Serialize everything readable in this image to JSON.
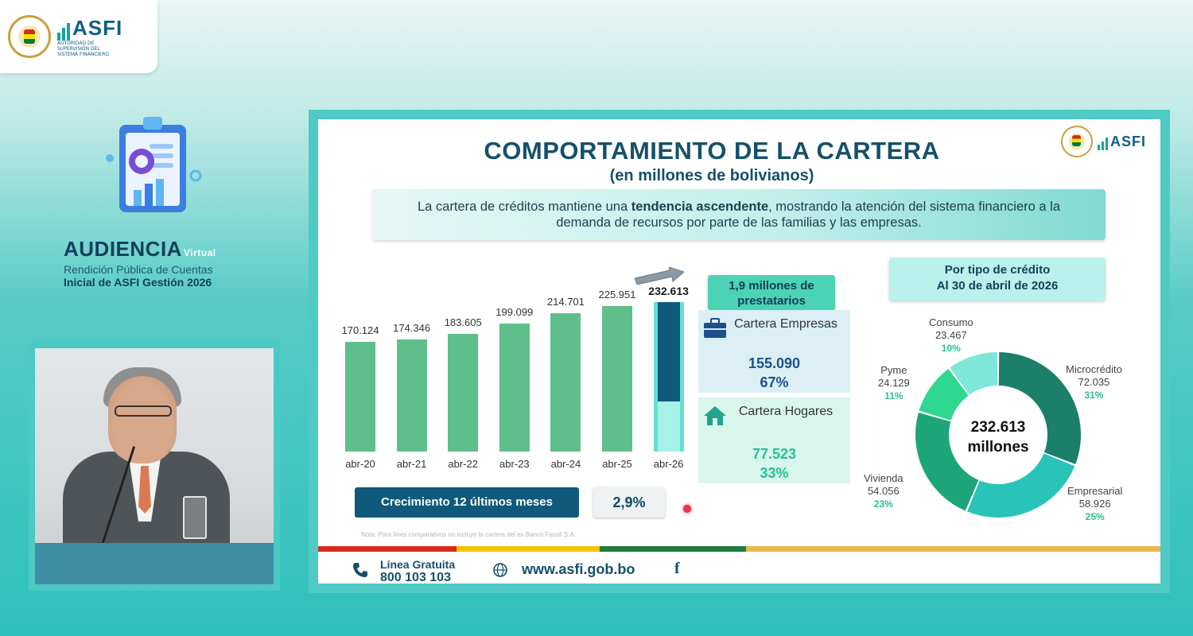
{
  "header": {
    "logo_text": "ASFI",
    "logo_subtitle": "AUTORIDAD DE SUPERVISIÓN DEL SISTEMA FINANCIERO"
  },
  "left_panel": {
    "icon": "clipboard-chart-icon",
    "audiencia": "AUDIENCIA",
    "virtual": "Virtual",
    "line1": "Rendición Pública de Cuentas",
    "line2": "Inicial de ASFI Gestión 2026"
  },
  "video": {
    "description_icon": "speaker-video-feed"
  },
  "slide": {
    "title": "COMPORTAMIENTO DE LA CARTERA",
    "subtitle": "(en millones de bolivianos)",
    "logo_text": "ASFI",
    "banner": {
      "part1": "La cartera de créditos mantiene una ",
      "bold": "tendencia ascendente",
      "part2": ", mostrando la atención del sistema financiero a la demanda de recursos por parte de las familias y las empresas."
    },
    "prestatarios": "1,9 millones de prestatarios",
    "empresas": {
      "label": "Cartera Empresas",
      "value": "155.090",
      "pct": "67%"
    },
    "hogares": {
      "label": "Cartera Hogares",
      "value": "77.523",
      "pct": "33%"
    },
    "growth_label": "Crecimiento 12 últimos meses",
    "growth_value": "2,9%",
    "note": "Nota: Para fines comparativos no incluye la cartera del ex Banco Fassil S.A.",
    "tipo_head_1": "Por tipo de crédito",
    "tipo_head_2": "Al 30 de abril de 2026",
    "donut_center_1": "232.613",
    "donut_center_2": "millones",
    "footer": {
      "linea": "Línea Gratuita",
      "phone": "800 103 103",
      "web": "www.asfi.gob.bo",
      "fb": "f"
    }
  },
  "colors": {
    "bar": "#5fbf8a",
    "bar_last_dark": "#0f5a7a",
    "bar_last_light": "#63e0d6",
    "title": "#15506b",
    "stripe": [
      "#d52b1e",
      "#f4c400",
      "#1f7a3d",
      "#e8b84a"
    ]
  },
  "chart_data": [
    {
      "type": "bar",
      "categories": [
        "abr-20",
        "abr-21",
        "abr-22",
        "abr-23",
        "abr-24",
        "abr-25",
        "abr-26"
      ],
      "values": [
        170124,
        174346,
        183605,
        199099,
        214701,
        225951,
        232613
      ],
      "value_labels": [
        "170.124",
        "174.346",
        "183.605",
        "199.099",
        "214.701",
        "225.951",
        "232.613"
      ],
      "last_bar_split": {
        "empresas": 155090,
        "hogares": 77523
      }
    },
    {
      "type": "pie",
      "slices": [
        {
          "name": "Microcrédito",
          "value": 72035,
          "label": "72.035",
          "pct": "31%",
          "color": "#1b7f6a"
        },
        {
          "name": "Empresarial",
          "value": 58926,
          "label": "58.926",
          "pct": "25%",
          "color": "#2ac3b7"
        },
        {
          "name": "Vivienda",
          "value": 54056,
          "label": "54.056",
          "pct": "23%",
          "color": "#1ea57a"
        },
        {
          "name": "Pyme",
          "value": 24129,
          "label": "24.129",
          "pct": "11%",
          "color": "#2fd88f"
        },
        {
          "name": "Consumo",
          "value": 23467,
          "label": "23.467",
          "pct": "10%",
          "color": "#7fe6da"
        }
      ]
    }
  ]
}
